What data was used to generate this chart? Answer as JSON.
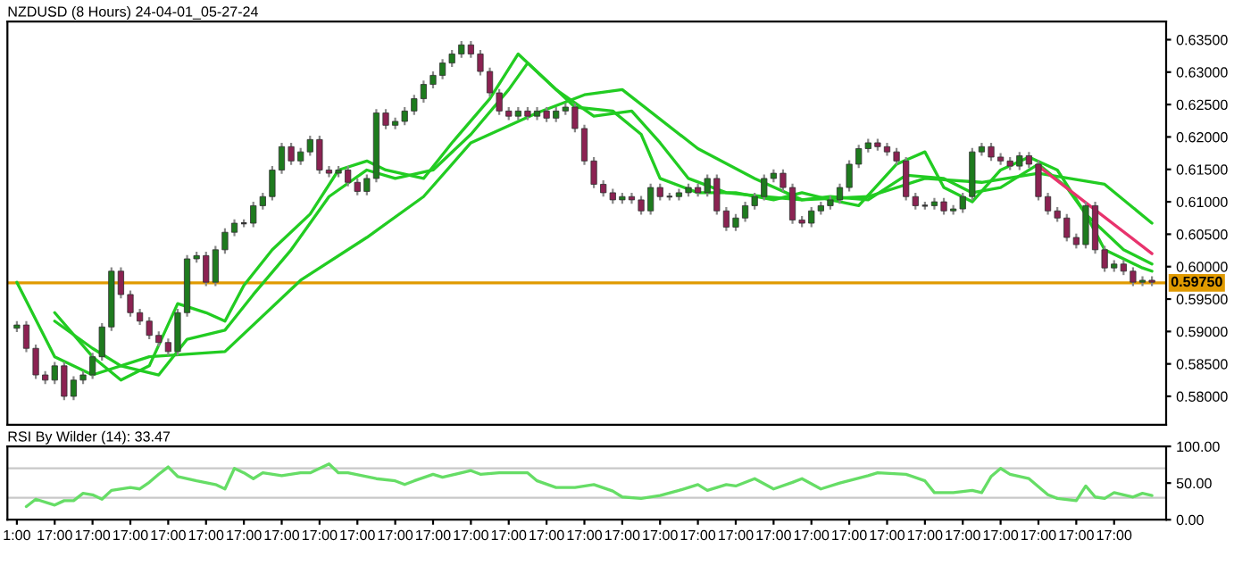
{
  "chart_data": [
    {
      "type": "candlestick",
      "title": "NZDUSD (8 Hours) 24-04-01_05-27-24",
      "tick_labels": "y",
      "categories": [
        null,
        null,
        null,
        null,
        null,
        null,
        null,
        null,
        null,
        null,
        null,
        null,
        null,
        null,
        null,
        null,
        null,
        null,
        null,
        null,
        null,
        null,
        null,
        null,
        null,
        null,
        null,
        null,
        null,
        null,
        null,
        null,
        null,
        null,
        null,
        null,
        null,
        null,
        null,
        null,
        null,
        null,
        null,
        null,
        null,
        null,
        null,
        null,
        null,
        null,
        null,
        null,
        null,
        null,
        null,
        null,
        null,
        null,
        null,
        null,
        null,
        null,
        null,
        null,
        null,
        null,
        null,
        null,
        null,
        null,
        null,
        null,
        null,
        null,
        null,
        null,
        null,
        null,
        null,
        null,
        null,
        null,
        null,
        null,
        null,
        null,
        null,
        null,
        null,
        null,
        null,
        null,
        null,
        null,
        null,
        null,
        null,
        null,
        null,
        null,
        null,
        null,
        null,
        null,
        null,
        null,
        null,
        null,
        null,
        null,
        null,
        null,
        null,
        null,
        null,
        null,
        null,
        null,
        null,
        null,
        null
      ],
      "ohlc": [
        [
          0.5905,
          0.5916,
          0.5899,
          0.591
        ],
        [
          0.591,
          0.5916,
          0.5868,
          0.5874
        ],
        [
          0.5874,
          0.588,
          0.5827,
          0.5833
        ],
        [
          0.5833,
          0.5839,
          0.5819,
          0.5825
        ],
        [
          0.5825,
          0.5853,
          0.5819,
          0.5847
        ],
        [
          0.5847,
          0.5853,
          0.5794,
          0.58
        ],
        [
          0.58,
          0.5831,
          0.5794,
          0.5825
        ],
        [
          0.5825,
          0.5839,
          0.5819,
          0.5833
        ],
        [
          0.5833,
          0.5867,
          0.5827,
          0.5861
        ],
        [
          0.5861,
          0.5913,
          0.5855,
          0.5907
        ],
        [
          0.5907,
          0.5999,
          0.5901,
          0.5993
        ],
        [
          0.5993,
          0.5999,
          0.5951,
          0.5957
        ],
        [
          0.5957,
          0.5963,
          0.5923,
          0.5929
        ],
        [
          0.5929,
          0.5935,
          0.591,
          0.5916
        ],
        [
          0.5916,
          0.5922,
          0.5888,
          0.5894
        ],
        [
          0.5894,
          0.59,
          0.5877,
          0.5883
        ],
        [
          0.5883,
          0.5889,
          0.5863,
          0.5869
        ],
        [
          0.5869,
          0.5935,
          0.5863,
          0.5929
        ],
        [
          0.5929,
          0.6018,
          0.5923,
          0.6012
        ],
        [
          0.6012,
          0.6023,
          0.6006,
          0.6017
        ],
        [
          0.6017,
          0.6023,
          0.597,
          0.5976
        ],
        [
          0.5976,
          0.6032,
          0.597,
          0.6026
        ],
        [
          0.6026,
          0.6059,
          0.602,
          0.6053
        ],
        [
          0.6053,
          0.6073,
          0.6047,
          0.6067
        ],
        [
          0.6067,
          0.6073,
          0.6061,
          0.6067
        ],
        [
          0.6067,
          0.61,
          0.6061,
          0.6094
        ],
        [
          0.6094,
          0.6114,
          0.6088,
          0.6108
        ],
        [
          0.6108,
          0.6155,
          0.6102,
          0.6149
        ],
        [
          0.6149,
          0.6191,
          0.6143,
          0.6185
        ],
        [
          0.6185,
          0.6191,
          0.6157,
          0.6163
        ],
        [
          0.6163,
          0.6183,
          0.6157,
          0.6177
        ],
        [
          0.6177,
          0.6202,
          0.6171,
          0.6196
        ],
        [
          0.6196,
          0.6202,
          0.6143,
          0.6149
        ],
        [
          0.6149,
          0.6155,
          0.6138,
          0.6144
        ],
        [
          0.6144,
          0.6155,
          0.6138,
          0.6149
        ],
        [
          0.6149,
          0.6155,
          0.6124,
          0.613
        ],
        [
          0.613,
          0.6136,
          0.611,
          0.6116
        ],
        [
          0.6116,
          0.6142,
          0.611,
          0.6136
        ],
        [
          0.6136,
          0.6243,
          0.613,
          0.6237
        ],
        [
          0.6237,
          0.6243,
          0.6212,
          0.6218
        ],
        [
          0.6218,
          0.623,
          0.6212,
          0.6224
        ],
        [
          0.6224,
          0.6246,
          0.6218,
          0.624
        ],
        [
          0.624,
          0.6265,
          0.6234,
          0.6259
        ],
        [
          0.6259,
          0.6287,
          0.6253,
          0.6281
        ],
        [
          0.6281,
          0.6301,
          0.6275,
          0.6295
        ],
        [
          0.6295,
          0.632,
          0.6289,
          0.6314
        ],
        [
          0.6314,
          0.6334,
          0.6308,
          0.6328
        ],
        [
          0.6328,
          0.6348,
          0.6322,
          0.6342
        ],
        [
          0.6342,
          0.6348,
          0.6322,
          0.6328
        ],
        [
          0.6328,
          0.6334,
          0.6295,
          0.6301
        ],
        [
          0.6301,
          0.6307,
          0.6262,
          0.6268
        ],
        [
          0.6268,
          0.6274,
          0.6234,
          0.624
        ],
        [
          0.624,
          0.6246,
          0.6226,
          0.6232
        ],
        [
          0.6232,
          0.6246,
          0.6226,
          0.624
        ],
        [
          0.624,
          0.6246,
          0.6226,
          0.6232
        ],
        [
          0.6232,
          0.6246,
          0.6226,
          0.624
        ],
        [
          0.624,
          0.6246,
          0.6223,
          0.6229
        ],
        [
          0.6229,
          0.6246,
          0.6223,
          0.624
        ],
        [
          0.624,
          0.6252,
          0.6234,
          0.6246
        ],
        [
          0.6246,
          0.6252,
          0.6207,
          0.6213
        ],
        [
          0.6213,
          0.6219,
          0.6157,
          0.6163
        ],
        [
          0.6163,
          0.6169,
          0.6121,
          0.6127
        ],
        [
          0.6127,
          0.6133,
          0.6108,
          0.6114
        ],
        [
          0.6114,
          0.612,
          0.6097,
          0.6103
        ],
        [
          0.6103,
          0.6114,
          0.6097,
          0.6108
        ],
        [
          0.6108,
          0.6114,
          0.6097,
          0.6103
        ],
        [
          0.6103,
          0.6109,
          0.608,
          0.6086
        ],
        [
          0.6086,
          0.6128,
          0.608,
          0.6122
        ],
        [
          0.6122,
          0.6128,
          0.6102,
          0.6108
        ],
        [
          0.6108,
          0.6114,
          0.6102,
          0.6108
        ],
        [
          0.6108,
          0.612,
          0.6102,
          0.6114
        ],
        [
          0.6114,
          0.6128,
          0.6108,
          0.6122
        ],
        [
          0.6122,
          0.6128,
          0.6108,
          0.6114
        ],
        [
          0.6114,
          0.6142,
          0.6108,
          0.6136
        ],
        [
          0.6136,
          0.6142,
          0.608,
          0.6086
        ],
        [
          0.6086,
          0.6092,
          0.6055,
          0.6061
        ],
        [
          0.6061,
          0.6081,
          0.6055,
          0.6075
        ],
        [
          0.6075,
          0.61,
          0.6069,
          0.6094
        ],
        [
          0.6094,
          0.6114,
          0.6088,
          0.6108
        ],
        [
          0.6108,
          0.6142,
          0.6102,
          0.6136
        ],
        [
          0.6136,
          0.615,
          0.613,
          0.6144
        ],
        [
          0.6144,
          0.615,
          0.6116,
          0.6122
        ],
        [
          0.6122,
          0.6128,
          0.6066,
          0.6072
        ],
        [
          0.6072,
          0.6078,
          0.6061,
          0.6067
        ],
        [
          0.6067,
          0.6092,
          0.6061,
          0.6086
        ],
        [
          0.6086,
          0.61,
          0.608,
          0.6094
        ],
        [
          0.6094,
          0.6109,
          0.6088,
          0.6103
        ],
        [
          0.6103,
          0.6128,
          0.6097,
          0.6122
        ],
        [
          0.6122,
          0.6164,
          0.6116,
          0.6158
        ],
        [
          0.6158,
          0.6188,
          0.6152,
          0.6182
        ],
        [
          0.6182,
          0.6197,
          0.6176,
          0.6191
        ],
        [
          0.6191,
          0.6197,
          0.6179,
          0.6185
        ],
        [
          0.6185,
          0.6191,
          0.6171,
          0.6177
        ],
        [
          0.6177,
          0.6183,
          0.6157,
          0.6163
        ],
        [
          0.6163,
          0.6169,
          0.6102,
          0.6108
        ],
        [
          0.6108,
          0.6114,
          0.6088,
          0.6094
        ],
        [
          0.6094,
          0.61,
          0.6088,
          0.6094
        ],
        [
          0.6094,
          0.6106,
          0.6088,
          0.61
        ],
        [
          0.61,
          0.6106,
          0.608,
          0.6086
        ],
        [
          0.6086,
          0.6095,
          0.608,
          0.6089
        ],
        [
          0.6089,
          0.6114,
          0.6083,
          0.6108
        ],
        [
          0.6108,
          0.6183,
          0.6102,
          0.6177
        ],
        [
          0.6177,
          0.6191,
          0.6171,
          0.6185
        ],
        [
          0.6185,
          0.6191,
          0.6163,
          0.6169
        ],
        [
          0.6169,
          0.6175,
          0.6157,
          0.6163
        ],
        [
          0.6163,
          0.6169,
          0.6149,
          0.6155
        ],
        [
          0.6155,
          0.6177,
          0.6149,
          0.6171
        ],
        [
          0.6171,
          0.6177,
          0.6152,
          0.6158
        ],
        [
          0.6158,
          0.6164,
          0.6102,
          0.6108
        ],
        [
          0.6108,
          0.6114,
          0.608,
          0.6086
        ],
        [
          0.6086,
          0.6092,
          0.6069,
          0.6075
        ],
        [
          0.6075,
          0.6081,
          0.6039,
          0.6045
        ],
        [
          0.6045,
          0.6051,
          0.6028,
          0.6034
        ],
        [
          0.6034,
          0.61,
          0.6028,
          0.6094
        ],
        [
          0.6094,
          0.61,
          0.602,
          0.6026
        ],
        [
          0.6026,
          0.6032,
          0.5992,
          0.5998
        ],
        [
          0.5998,
          0.601,
          0.5992,
          0.6004
        ],
        [
          0.6004,
          0.601,
          0.5987,
          0.5993
        ],
        [
          0.5993,
          0.5999,
          0.597,
          0.5976
        ],
        [
          0.5976,
          0.5985,
          0.597,
          0.5979
        ],
        [
          0.5979,
          0.5985,
          0.597,
          0.5976
        ]
      ],
      "series": [
        {
          "type": "line",
          "color": "#22cc22",
          "values": [
            null,
            null,
            null,
            null,
            0.5929,
            null,
            null,
            null,
            0.5861,
            null,
            null,
            0.5825,
            null,
            null,
            0.5847,
            null,
            null,
            0.5943,
            null,
            null,
            0.5929,
            null,
            0.5916,
            null,
            0.5971,
            null,
            null,
            0.6026,
            null,
            null,
            null,
            0.6081,
            null,
            null,
            0.6149,
            null,
            null,
            0.6163,
            null,
            0.6149,
            null,
            null,
            null,
            0.6136,
            null,
            null,
            0.6191,
            null,
            null,
            null,
            0.6259,
            null,
            null,
            0.6328,
            null,
            null,
            0.6287,
            null,
            null,
            0.6246,
            null,
            null,
            null,
            0.624,
            null,
            null,
            0.6204,
            null,
            0.6136,
            null,
            null,
            null,
            0.6114,
            null,
            null,
            null,
            0.6114,
            null,
            null,
            null,
            0.6103,
            null,
            null,
            0.6114,
            null,
            null,
            0.6103,
            null,
            null,
            0.6094,
            null,
            null,
            null,
            0.6158,
            null,
            null,
            0.6177,
            null,
            0.6122,
            null,
            null,
            0.61,
            null,
            null,
            0.6149,
            null,
            null,
            0.6169,
            null,
            null,
            0.6149,
            null,
            null,
            0.6081,
            null,
            0.6026,
            null,
            null,
            null,
            0.5998,
            0.5993
          ]
        },
        {
          "type": "line",
          "color": "#22cc22",
          "values": [
            null,
            null,
            null,
            null,
            0.5916,
            null,
            null,
            null,
            0.5874,
            null,
            null,
            0.5847,
            null,
            null,
            null,
            0.5833,
            null,
            null,
            0.5888,
            null,
            null,
            null,
            0.5902,
            null,
            null,
            0.5957,
            null,
            null,
            null,
            0.6026,
            null,
            null,
            null,
            0.6108,
            null,
            null,
            null,
            0.6149,
            null,
            null,
            0.6136,
            null,
            null,
            null,
            0.6149,
            null,
            null,
            null,
            0.6204,
            null,
            null,
            null,
            0.6273,
            null,
            0.6314,
            null,
            null,
            0.6273,
            null,
            null,
            null,
            0.6232,
            null,
            null,
            null,
            0.624,
            null,
            null,
            0.6191,
            null,
            null,
            0.6136,
            null,
            null,
            null,
            0.6114,
            null,
            null,
            null,
            0.6108,
            null,
            null,
            null,
            0.6103,
            null,
            null,
            0.6108,
            null,
            null,
            null,
            0.6103,
            null,
            null,
            null,
            0.6141,
            null,
            null,
            null,
            0.6136,
            null,
            null,
            0.6114,
            null,
            null,
            0.6122,
            null,
            null,
            null,
            0.6158,
            null,
            null,
            0.6122,
            null,
            0.6081,
            null,
            null,
            null,
            0.6026,
            null,
            null,
            0.6004
          ]
        },
        {
          "type": "line",
          "color": "#22cc22",
          "values": [
            0.5976,
            null,
            null,
            null,
            0.5861,
            null,
            null,
            null,
            0.5833,
            null,
            null,
            null,
            null,
            null,
            0.5861,
            null,
            null,
            null,
            null,
            null,
            null,
            null,
            0.5869,
            null,
            null,
            null,
            null,
            null,
            null,
            null,
            0.5979,
            null,
            null,
            null,
            null,
            null,
            null,
            0.6045,
            null,
            null,
            null,
            null,
            null,
            0.6108,
            null,
            null,
            null,
            null,
            0.6191,
            null,
            null,
            null,
            null,
            null,
            null,
            0.6237,
            null,
            null,
            null,
            null,
            0.6265,
            null,
            null,
            null,
            0.6273,
            null,
            null,
            null,
            null,
            null,
            null,
            null,
            0.6182,
            null,
            null,
            null,
            null,
            null,
            0.6136,
            null,
            null,
            null,
            null,
            0.6103,
            null,
            null,
            null,
            null,
            null,
            null,
            0.6108,
            null,
            null,
            null,
            null,
            null,
            0.6136,
            null,
            null,
            null,
            null,
            null,
            0.613,
            null,
            null,
            null,
            null,
            null,
            0.6144,
            null,
            null,
            null,
            null,
            null,
            null,
            0.6127,
            null,
            null,
            null,
            null,
            0.6067
          ]
        },
        {
          "type": "line",
          "color": "#e8336d",
          "values": [
            null,
            null,
            null,
            null,
            null,
            null,
            null,
            null,
            null,
            null,
            null,
            null,
            null,
            null,
            null,
            null,
            null,
            null,
            null,
            null,
            null,
            null,
            null,
            null,
            null,
            null,
            null,
            null,
            null,
            null,
            null,
            null,
            null,
            null,
            null,
            null,
            null,
            null,
            null,
            null,
            null,
            null,
            null,
            null,
            null,
            null,
            null,
            null,
            null,
            null,
            null,
            null,
            null,
            null,
            null,
            null,
            null,
            null,
            null,
            null,
            null,
            null,
            null,
            null,
            null,
            null,
            null,
            null,
            null,
            null,
            null,
            null,
            null,
            null,
            null,
            null,
            null,
            null,
            null,
            null,
            null,
            null,
            null,
            null,
            null,
            null,
            null,
            null,
            null,
            null,
            null,
            null,
            null,
            null,
            null,
            null,
            null,
            null,
            null,
            null,
            null,
            null,
            null,
            null,
            null,
            null,
            null,
            null,
            0.6155,
            null,
            null,
            null,
            null,
            null,
            null,
            null,
            null,
            null,
            null,
            null,
            0.602
          ]
        }
      ],
      "ylim": [
        0.5756,
        0.6378
      ],
      "yticks": [
        {
          "value": 0.58,
          "label": "0.58000"
        },
        {
          "value": 0.585,
          "label": "0.58500"
        },
        {
          "value": 0.59,
          "label": "0.59000"
        },
        {
          "value": 0.595,
          "label": "0.59500"
        },
        {
          "value": 0.6,
          "label": "0.60000"
        },
        {
          "value": 0.605,
          "label": "0.60500"
        },
        {
          "value": 0.61,
          "label": "0.61000"
        },
        {
          "value": 0.615,
          "label": "0.61500"
        },
        {
          "value": 0.62,
          "label": "0.62000"
        },
        {
          "value": 0.625,
          "label": "0.62500"
        },
        {
          "value": 0.63,
          "label": "0.63000"
        },
        {
          "value": 0.635,
          "label": "0.63500"
        }
      ],
      "ref_lines": [
        {
          "axis": "y",
          "value": 0.5975,
          "label": "0.59750",
          "color": "#e09a00"
        }
      ]
    },
    {
      "type": "line",
      "title": "RSI By Wilder (14): 33.47",
      "categories": [
        "1:00",
        null,
        null,
        null,
        "17:00",
        null,
        null,
        null,
        "17:00",
        null,
        null,
        null,
        "17:00",
        null,
        null,
        null,
        "17:00",
        null,
        null,
        null,
        "17:00",
        null,
        null,
        null,
        "17:00",
        null,
        null,
        null,
        "17:00",
        null,
        null,
        null,
        "17:00",
        null,
        null,
        null,
        "17:00",
        null,
        null,
        null,
        "17:00",
        null,
        null,
        null,
        "17:00",
        null,
        null,
        null,
        "17:00",
        null,
        null,
        null,
        "17:00",
        null,
        null,
        null,
        "17:00",
        null,
        null,
        null,
        "17:00",
        null,
        null,
        null,
        "17:00",
        null,
        null,
        null,
        "17:00",
        null,
        null,
        null,
        "17:00",
        null,
        null,
        null,
        "17:00",
        null,
        null,
        null,
        "17:00",
        null,
        null,
        null,
        "17:00",
        null,
        null,
        null,
        "17:00",
        null,
        null,
        null,
        "17:00",
        null,
        null,
        null,
        "17:00",
        null,
        null,
        null,
        "17:00",
        null,
        null,
        null,
        "17:00",
        null,
        null,
        null,
        "17:00",
        null,
        null,
        null,
        "17:00",
        null,
        null,
        null,
        "17:00",
        null,
        null,
        null,
        null
      ],
      "series": [
        {
          "color": "#66dd66",
          "values": [
            null,
            18,
            28,
            null,
            20,
            26,
            26,
            36,
            34,
            28,
            40,
            null,
            44,
            42,
            51,
            62,
            72,
            59,
            null,
            53,
            null,
            48,
            42,
            70,
            64,
            56,
            64,
            null,
            60,
            null,
            64,
            64,
            null,
            76,
            64,
            64,
            null,
            null,
            56,
            null,
            53,
            48,
            53,
            null,
            62,
            58,
            null,
            null,
            67,
            62,
            null,
            64,
            null,
            null,
            64,
            53,
            null,
            44,
            null,
            44,
            null,
            48,
            null,
            39,
            31,
            null,
            29,
            null,
            33,
            null,
            40,
            null,
            48,
            40,
            null,
            48,
            46,
            null,
            56,
            null,
            42,
            null,
            51,
            56,
            null,
            42,
            null,
            50,
            null,
            null,
            60,
            64,
            null,
            null,
            62,
            null,
            53,
            37,
            null,
            37,
            null,
            40,
            37,
            59,
            70,
            62,
            null,
            56,
            null,
            34,
            29,
            null,
            26,
            46,
            31,
            29,
            37,
            null,
            31,
            36,
            33
          ]
        }
      ],
      "ylim": [
        0,
        100
      ],
      "yticks": [
        {
          "value": 0,
          "label": "0.00"
        },
        {
          "value": 50,
          "label": "50.00"
        },
        {
          "value": 100,
          "label": "100.00"
        }
      ],
      "ref_lines": [
        {
          "axis": "y",
          "value": 70,
          "color": "#c8c8c8"
        },
        {
          "axis": "y",
          "value": 30,
          "color": "#c8c8c8"
        }
      ]
    }
  ]
}
